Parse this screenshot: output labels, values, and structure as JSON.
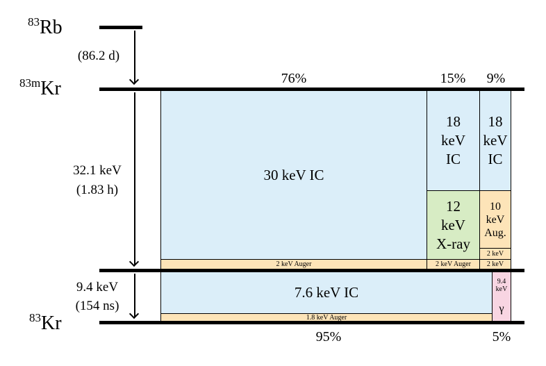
{
  "isotopes": {
    "rb83": {
      "mass": "83",
      "symbol": "Rb"
    },
    "kr83m": {
      "mass": "83m",
      "symbol": "Kr"
    },
    "kr83": {
      "mass": "83",
      "symbol": "Kr"
    }
  },
  "transitions": {
    "rb_decay": {
      "halflife": "(86.2 d)"
    },
    "upper": {
      "energy": "32.1 keV",
      "halflife": "(1.83 h)"
    },
    "lower": {
      "energy": "9.4 keV",
      "halflife": "(154 ns)"
    }
  },
  "branches_upper": {
    "main": "76%",
    "mid": "15%",
    "right": "9%"
  },
  "branches_lower": {
    "main": "95%",
    "right": "5%"
  },
  "boxes_upper": {
    "main_ic": "30 keV IC",
    "main_auger": "2 keV Auger",
    "mid_ic": "18\nkeV\nIC",
    "mid_xray": "12\nkeV\nX-ray",
    "mid_auger": "2 keV Auger",
    "right_ic": "18\nkeV\nIC",
    "right_auger10": "10\nkeV\nAug.",
    "right_auger2a": "2 keV",
    "right_auger2b": "2 keV"
  },
  "boxes_lower": {
    "main_ic": "7.6 keV IC",
    "main_auger": "1.8 keV Auger",
    "gamma_energy": "9.4\nkeV",
    "gamma_symbol": "γ"
  },
  "colors": {
    "conversion": "#dbeef9",
    "auger": "#fde4b8",
    "xray": "#d7ecc4",
    "gamma": "#f8d5e2"
  }
}
